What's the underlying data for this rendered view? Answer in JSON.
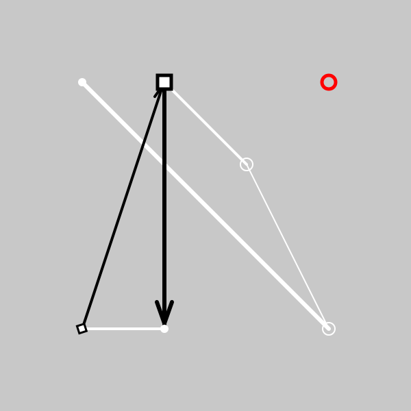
{
  "colors": {
    "background": "#c8c8c8",
    "white": "#ffffff",
    "black": "#000000",
    "red": "#ff0000"
  },
  "nodes": [
    {
      "id": "top-left-node",
      "shape": "circle-dot",
      "color": "white"
    },
    {
      "id": "top-center-node",
      "shape": "square",
      "color": "black"
    },
    {
      "id": "top-right-node",
      "shape": "ring",
      "color": "red"
    },
    {
      "id": "middle-node",
      "shape": "circle-outline",
      "color": "white"
    },
    {
      "id": "bottom-left-node",
      "shape": "square-small",
      "color": "black"
    },
    {
      "id": "bottom-center-node",
      "shape": "circle-dot",
      "color": "white"
    },
    {
      "id": "bottom-right-node",
      "shape": "circle-outline",
      "color": "white"
    }
  ],
  "edges": [
    {
      "from": "top-left-node",
      "to": "bottom-right-node",
      "color": "white",
      "style": "thick"
    },
    {
      "from": "top-center-node",
      "to": "middle-node",
      "color": "white",
      "style": "medium"
    },
    {
      "from": "middle-node",
      "to": "bottom-right-node",
      "color": "white",
      "style": "thin"
    },
    {
      "from": "bottom-left-node",
      "to": "bottom-center-node",
      "color": "white",
      "style": "medium"
    },
    {
      "from": "bottom-left-node",
      "to": "top-center-node",
      "color": "black",
      "style": "arrow-medium"
    },
    {
      "from": "top-center-node",
      "to": "bottom-center-node",
      "color": "black",
      "style": "arrow-thick"
    }
  ]
}
